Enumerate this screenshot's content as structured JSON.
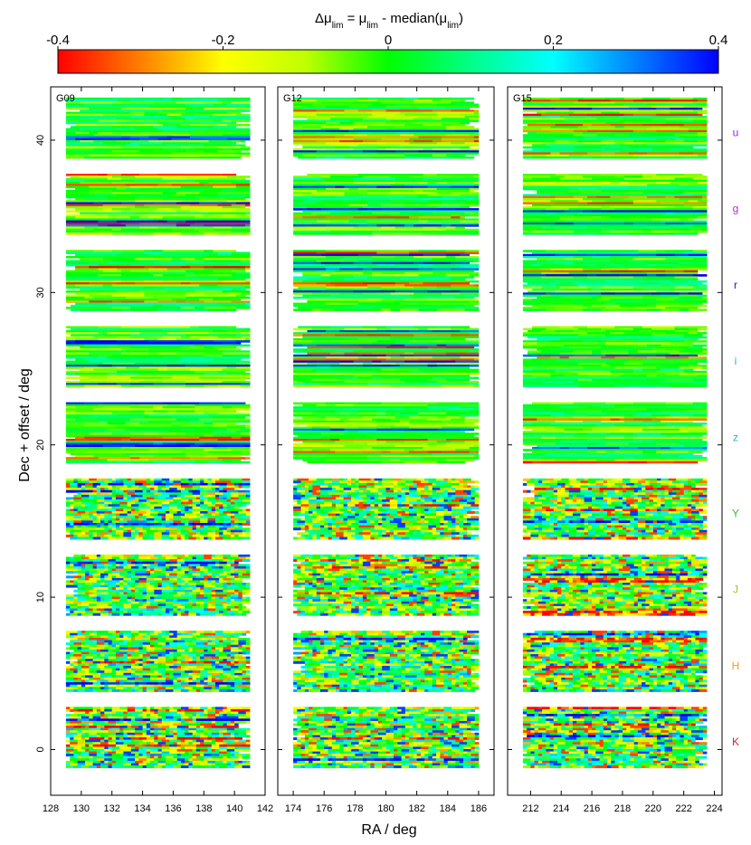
{
  "chart_data": {
    "type": "heatmap",
    "title": "Δμlim = μlim - median(μlim)",
    "title_parts": {
      "delta": "Δμ",
      "sub1": "lim",
      "eq": " = μ",
      "sub2": "lim",
      "median": " - median(μ",
      "sub3": "lim",
      "close": ")"
    },
    "colorbar": {
      "min": -0.4,
      "max": 0.4,
      "ticks": [
        -0.4,
        -0.2,
        0,
        0.2,
        0.4
      ],
      "tick_labels": [
        "-0.4",
        "-0.2",
        "0",
        "0.2",
        "0.4"
      ],
      "colors": [
        "#ff0000",
        "#ff7f00",
        "#ffff00",
        "#bfff00",
        "#00ff00",
        "#00ff88",
        "#00ffff",
        "#0080ff",
        "#0000ff"
      ]
    },
    "xlabel": "RA / deg",
    "ylabel": "Dec + offset / deg",
    "ylim": [
      -3,
      43.5
    ],
    "yticks": [
      0,
      10,
      20,
      30,
      40
    ],
    "ytick_labels": [
      "0",
      "10",
      "20",
      "30",
      "40"
    ],
    "panels": [
      {
        "name": "G09",
        "xlim": [
          128,
          142
        ],
        "xticks": [
          128,
          130,
          132,
          134,
          136,
          138,
          140,
          142
        ],
        "xtick_labels": [
          "128",
          "130",
          "132",
          "134",
          "136",
          "138",
          "140",
          "142"
        ]
      },
      {
        "name": "G12",
        "xlim": [
          173,
          187
        ],
        "xticks": [
          174,
          176,
          178,
          180,
          182,
          184,
          186
        ],
        "xtick_labels": [
          "174",
          "176",
          "178",
          "180",
          "182",
          "184",
          "186"
        ]
      },
      {
        "name": "G15",
        "xlim": [
          210.5,
          224.5
        ],
        "xticks": [
          212,
          214,
          216,
          218,
          220,
          222,
          224
        ],
        "xtick_labels": [
          "212",
          "214",
          "216",
          "218",
          "220",
          "222",
          "224"
        ]
      }
    ],
    "bands": [
      {
        "name": "u",
        "color": "#a020f0",
        "dec_center": 40.5,
        "dec_range": [
          38.8,
          42.8
        ]
      },
      {
        "name": "g",
        "color": "#b030c0",
        "dec_center": 35.5,
        "dec_range": [
          33.8,
          37.8
        ]
      },
      {
        "name": "r",
        "color": "#2020c0",
        "dec_center": 30.5,
        "dec_range": [
          28.8,
          32.8
        ]
      },
      {
        "name": "i",
        "color": "#20b0e0",
        "dec_center": 25.5,
        "dec_range": [
          23.8,
          27.8
        ]
      },
      {
        "name": "z",
        "color": "#20c0b0",
        "dec_center": 20.5,
        "dec_range": [
          18.8,
          22.8
        ]
      },
      {
        "name": "Y",
        "color": "#30c030",
        "dec_center": 15.5,
        "dec_range": [
          13.8,
          17.8
        ]
      },
      {
        "name": "J",
        "color": "#b0c020",
        "dec_center": 10.5,
        "dec_range": [
          8.8,
          12.8
        ]
      },
      {
        "name": "H",
        "color": "#f0a020",
        "dec_center": 5.5,
        "dec_range": [
          3.8,
          7.8
        ]
      },
      {
        "name": "K",
        "color": "#e02020",
        "dec_center": 0.5,
        "dec_range": [
          -1.2,
          2.8
        ]
      }
    ]
  }
}
